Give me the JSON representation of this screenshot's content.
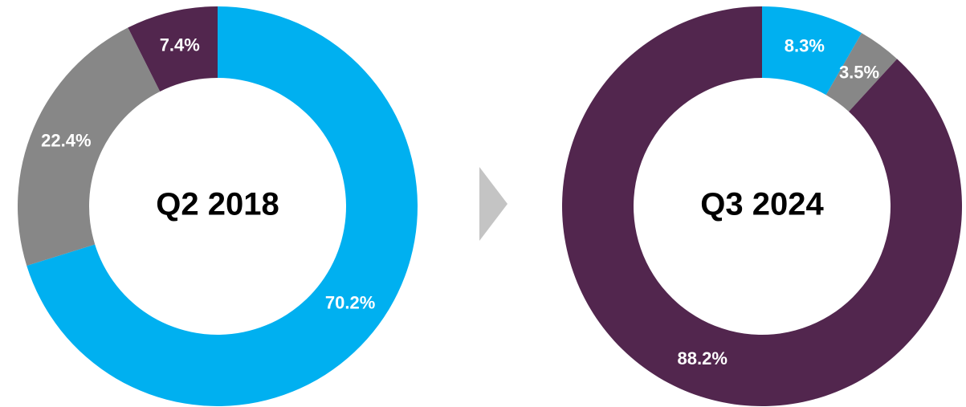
{
  "chart_data": [
    {
      "type": "pie",
      "title": "Q2 2018",
      "values": [
        70.2,
        22.4,
        7.4
      ],
      "value_labels": [
        "70.2%",
        "22.4%",
        "7.4%"
      ],
      "colors": [
        "#00b0f0",
        "#878787",
        "#52264e"
      ]
    },
    {
      "type": "pie",
      "title": "Q3 2024",
      "values": [
        8.3,
        3.5,
        88.2
      ],
      "value_labels": [
        "8.3%",
        "3.5%",
        "88.2%"
      ],
      "colors": [
        "#00b0f0",
        "#878787",
        "#52264e"
      ]
    }
  ]
}
